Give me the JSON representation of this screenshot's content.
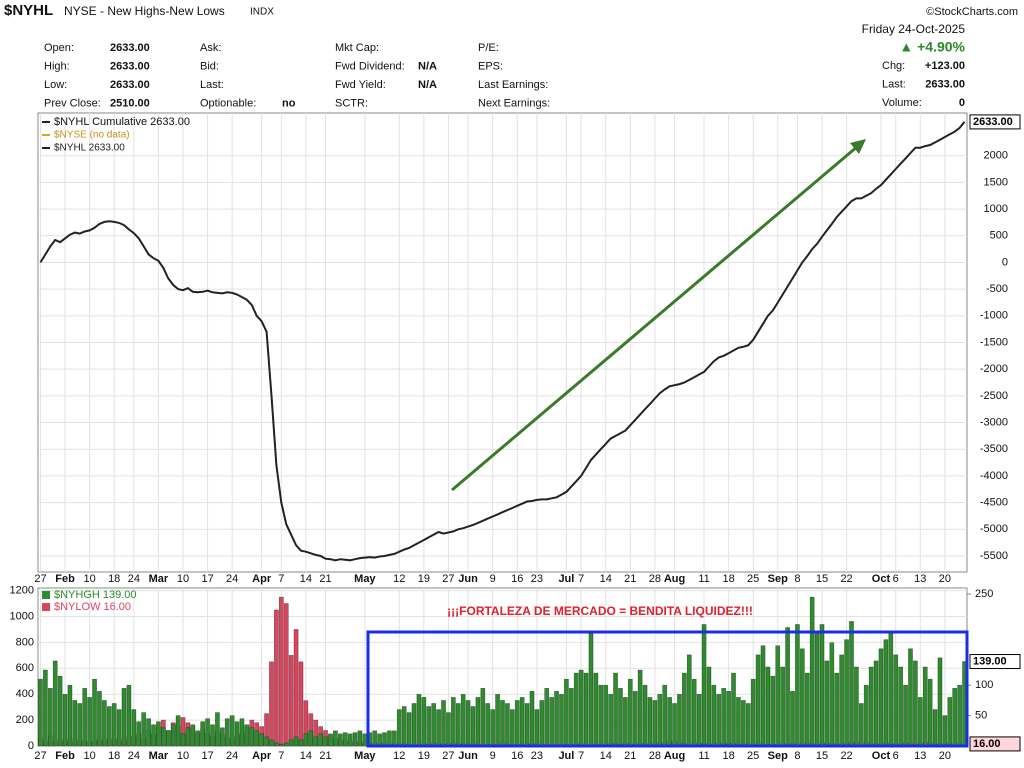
{
  "header": {
    "symbol": "$NYHL",
    "name": "NYSE - New Highs-New Lows",
    "kind": "INDX",
    "credit": "©StockCharts.com",
    "date": "Friday 24-Oct-2025",
    "change_pct": "▲ +4.90%"
  },
  "quote": {
    "columns": [
      [
        {
          "label": "Open:",
          "value": "2633.00"
        },
        {
          "label": "High:",
          "value": "2633.00"
        },
        {
          "label": "Low:",
          "value": "2633.00"
        },
        {
          "label": "Prev Close:",
          "value": "2510.00"
        }
      ],
      [
        {
          "label": "Ask:"
        },
        {
          "label": "Bid:"
        },
        {
          "label": "Last:"
        },
        {
          "label": "Optionable:",
          "value": "no"
        }
      ],
      [
        {
          "label": "Mkt Cap:"
        },
        {
          "label": "Fwd Dividend:",
          "value": "N/A"
        },
        {
          "label": "Fwd Yield:",
          "value": "N/A"
        },
        {
          "label": "SCTR:"
        }
      ],
      [
        {
          "label": "P/E:"
        },
        {
          "label": "EPS:"
        },
        {
          "label": "Last Earnings:"
        },
        {
          "label": "Next Earnings:"
        }
      ]
    ],
    "right": [
      {
        "label": "Chg:",
        "value": "+123.00"
      },
      {
        "label": "Last:",
        "value": "2633.00"
      },
      {
        "label": "Volume:",
        "value": "0"
      }
    ]
  },
  "annotations": {
    "text": "¡¡¡FORTALEZA DE MERCADO = BENDITA LIQUIDEZ!!!"
  },
  "chart_data": [
    {
      "type": "line",
      "legend_extra": [
        "$NYSE (no data)",
        "$NYHL 2633.00"
      ],
      "categories": [
        "27",
        null,
        null,
        null,
        null,
        "Feb",
        null,
        null,
        null,
        null,
        "10",
        null,
        null,
        null,
        null,
        "18",
        null,
        null,
        null,
        "24",
        null,
        null,
        null,
        null,
        "Mar",
        null,
        null,
        null,
        null,
        "10",
        null,
        null,
        null,
        null,
        "17",
        null,
        null,
        null,
        null,
        "24",
        null,
        null,
        null,
        null,
        null,
        "Apr",
        null,
        null,
        null,
        "7",
        null,
        null,
        null,
        null,
        "14",
        null,
        null,
        null,
        "21",
        null,
        null,
        null,
        null,
        null,
        null,
        null,
        "May",
        null,
        null,
        null,
        null,
        null,
        null,
        "12",
        null,
        null,
        null,
        null,
        "19",
        null,
        null,
        null,
        null,
        "27",
        null,
        null,
        null,
        "Jun",
        null,
        null,
        null,
        null,
        "9",
        null,
        null,
        null,
        null,
        "16",
        null,
        null,
        null,
        "23",
        null,
        null,
        null,
        null,
        null,
        "Jul",
        null,
        null,
        "7",
        null,
        null,
        null,
        null,
        "14",
        null,
        null,
        null,
        null,
        "21",
        null,
        null,
        null,
        null,
        "28",
        null,
        null,
        null,
        "Aug",
        null,
        null,
        null,
        null,
        null,
        "11",
        null,
        null,
        null,
        null,
        "18",
        null,
        null,
        null,
        null,
        "25",
        null,
        null,
        null,
        null,
        "Sep",
        null,
        null,
        null,
        "8",
        null,
        null,
        null,
        null,
        "15",
        null,
        null,
        null,
        null,
        "22",
        null,
        null,
        null,
        null,
        null,
        null,
        "Oct",
        null,
        null,
        "6",
        null,
        null,
        null,
        null,
        "13",
        null,
        null,
        null,
        null,
        "20",
        null,
        null,
        null,
        null
      ],
      "series": [
        {
          "name": "$NYHL Cumulative 2633.00",
          "color": "#222222",
          "value_tag": "2633.00",
          "values": [
            0,
            150,
            300,
            420,
            380,
            450,
            520,
            560,
            540,
            580,
            600,
            650,
            720,
            760,
            770,
            760,
            740,
            700,
            620,
            550,
            450,
            300,
            150,
            80,
            30,
            -100,
            -300,
            -420,
            -500,
            -520,
            -480,
            -550,
            -560,
            -550,
            -530,
            -560,
            -570,
            -580,
            -560,
            -570,
            -600,
            -650,
            -700,
            -800,
            -1000,
            -1100,
            -1300,
            -2500,
            -3800,
            -4500,
            -4900,
            -5100,
            -5300,
            -5400,
            -5420,
            -5450,
            -5480,
            -5500,
            -5550,
            -5560,
            -5580,
            -5560,
            -5570,
            -5580,
            -5560,
            -5540,
            -5530,
            -5520,
            -5530,
            -5510,
            -5500,
            -5480,
            -5460,
            -5420,
            -5380,
            -5350,
            -5300,
            -5250,
            -5200,
            -5150,
            -5100,
            -5050,
            -5080,
            -5060,
            -5040,
            -5000,
            -4980,
            -4950,
            -4920,
            -4880,
            -4840,
            -4800,
            -4760,
            -4720,
            -4680,
            -4640,
            -4600,
            -4560,
            -4520,
            -4480,
            -4470,
            -4450,
            -4440,
            -4440,
            -4420,
            -4400,
            -4350,
            -4300,
            -4200,
            -4100,
            -4000,
            -3850,
            -3700,
            -3600,
            -3500,
            -3400,
            -3300,
            -3250,
            -3200,
            -3150,
            -3050,
            -2950,
            -2850,
            -2750,
            -2650,
            -2550,
            -2450,
            -2380,
            -2320,
            -2300,
            -2280,
            -2250,
            -2200,
            -2150,
            -2100,
            -2050,
            -1950,
            -1850,
            -1780,
            -1750,
            -1700,
            -1650,
            -1600,
            -1580,
            -1550,
            -1450,
            -1300,
            -1150,
            -1000,
            -900,
            -750,
            -600,
            -450,
            -300,
            -150,
            0,
            120,
            250,
            350,
            480,
            600,
            720,
            850,
            950,
            1050,
            1150,
            1200,
            1200,
            1250,
            1300,
            1380,
            1450,
            1550,
            1650,
            1750,
            1850,
            1950,
            2050,
            2150,
            2150,
            2180,
            2200,
            2250,
            2300,
            2350,
            2400,
            2450,
            2520,
            2633
          ]
        }
      ],
      "ylim": [
        -5800,
        2800
      ],
      "yticks": [
        -5500,
        -5000,
        -4500,
        -4000,
        -3500,
        -3000,
        -2500,
        -2000,
        -1500,
        -1000,
        -500,
        0,
        500,
        1000,
        1500,
        2000
      ],
      "grid": true
    },
    {
      "type": "bar",
      "categories": [
        "27",
        null,
        null,
        null,
        null,
        "Feb",
        null,
        null,
        null,
        null,
        "10",
        null,
        null,
        null,
        null,
        "18",
        null,
        null,
        null,
        "24",
        null,
        null,
        null,
        null,
        "Mar",
        null,
        null,
        null,
        null,
        "10",
        null,
        null,
        null,
        null,
        "17",
        null,
        null,
        null,
        null,
        "24",
        null,
        null,
        null,
        null,
        null,
        "Apr",
        null,
        null,
        null,
        "7",
        null,
        null,
        null,
        null,
        "14",
        null,
        null,
        null,
        "21",
        null,
        null,
        null,
        null,
        null,
        null,
        null,
        "May",
        null,
        null,
        null,
        null,
        null,
        null,
        "12",
        null,
        null,
        null,
        null,
        "19",
        null,
        null,
        null,
        null,
        "27",
        null,
        null,
        null,
        "Jun",
        null,
        null,
        null,
        null,
        "9",
        null,
        null,
        null,
        null,
        "16",
        null,
        null,
        null,
        "23",
        null,
        null,
        null,
        null,
        null,
        "Jul",
        null,
        null,
        "7",
        null,
        null,
        null,
        null,
        "14",
        null,
        null,
        null,
        null,
        "21",
        null,
        null,
        null,
        null,
        "28",
        null,
        null,
        null,
        "Aug",
        null,
        null,
        null,
        null,
        null,
        "11",
        null,
        null,
        null,
        null,
        "18",
        null,
        null,
        null,
        null,
        "25",
        null,
        null,
        null,
        null,
        "Sep",
        null,
        null,
        null,
        "8",
        null,
        null,
        null,
        null,
        "15",
        null,
        null,
        null,
        null,
        "22",
        null,
        null,
        null,
        null,
        null,
        null,
        "Oct",
        null,
        null,
        "6",
        null,
        null,
        null,
        null,
        "13",
        null,
        null,
        null,
        null,
        "20",
        null,
        null,
        null,
        null
      ],
      "series": [
        {
          "name": "$NYLOW 16.00",
          "color": "#d9455f",
          "axis": "y",
          "value_tag": "16.00",
          "values": [
            60,
            40,
            80,
            30,
            50,
            40,
            60,
            30,
            50,
            40,
            30,
            40,
            50,
            40,
            60,
            50,
            60,
            40,
            70,
            80,
            100,
            60,
            120,
            90,
            150,
            200,
            120,
            180,
            160,
            220,
            180,
            150,
            100,
            130,
            100,
            80,
            120,
            90,
            70,
            60,
            80,
            100,
            150,
            200,
            180,
            150,
            250,
            650,
            1050,
            1150,
            1100,
            700,
            900,
            650,
            350,
            250,
            200,
            150,
            120,
            80,
            60,
            50,
            40,
            40,
            30,
            30,
            25,
            20,
            20,
            25,
            20,
            15,
            20,
            15,
            20,
            15,
            10,
            15,
            20,
            15,
            25,
            20,
            15,
            20,
            25,
            20,
            15,
            15,
            20,
            15,
            10,
            15,
            10,
            15,
            20,
            15,
            10,
            15,
            20,
            15,
            20,
            20,
            15,
            10,
            15,
            10,
            10,
            15,
            10,
            15,
            20,
            15,
            10,
            15,
            20,
            15,
            20,
            25,
            15,
            20,
            20,
            15,
            25,
            20,
            15,
            25,
            30,
            20,
            40,
            35,
            25,
            20,
            15,
            20,
            25,
            20,
            15,
            20,
            25,
            20,
            25,
            20,
            15,
            20,
            15,
            15,
            20,
            15,
            10,
            15,
            15,
            20,
            15,
            20,
            15,
            20,
            25,
            20,
            15,
            20,
            25,
            20,
            15,
            20,
            20,
            25,
            30,
            20,
            25,
            20,
            15,
            20,
            25,
            20,
            15,
            20,
            25,
            20,
            15,
            20,
            30,
            25,
            20,
            15,
            20,
            25,
            15,
            20,
            16
          ]
        },
        {
          "name": "$NYHGH 139.00",
          "color": "#2e8b2e",
          "axis": "y2",
          "value_tag": "139.00",
          "values": [
            110,
            125,
            95,
            140,
            115,
            85,
            100,
            75,
            70,
            95,
            80,
            110,
            90,
            75,
            65,
            70,
            60,
            95,
            100,
            60,
            40,
            55,
            45,
            35,
            40,
            30,
            25,
            35,
            50,
            20,
            30,
            35,
            25,
            40,
            45,
            35,
            55,
            30,
            45,
            50,
            40,
            45,
            35,
            30,
            25,
            20,
            15,
            10,
            5,
            3,
            5,
            10,
            15,
            10,
            20,
            25,
            15,
            20,
            15,
            20,
            25,
            20,
            22,
            20,
            22,
            25,
            20,
            22,
            25,
            20,
            22,
            25,
            25,
            60,
            65,
            55,
            70,
            85,
            80,
            65,
            70,
            60,
            75,
            55,
            80,
            70,
            85,
            75,
            65,
            80,
            95,
            70,
            60,
            85,
            75,
            70,
            60,
            75,
            80,
            70,
            90,
            60,
            75,
            95,
            80,
            90,
            85,
            110,
            95,
            120,
            125,
            120,
            185,
            120,
            100,
            100,
            85,
            120,
            95,
            80,
            110,
            90,
            125,
            100,
            80,
            75,
            85,
            100,
            80,
            70,
            85,
            120,
            150,
            110,
            85,
            200,
            130,
            100,
            85,
            95,
            90,
            120,
            80,
            75,
            70,
            110,
            150,
            165,
            130,
            115,
            165,
            130,
            195,
            90,
            200,
            160,
            120,
            245,
            185,
            200,
            140,
            170,
            120,
            150,
            175,
            205,
            130,
            70,
            100,
            130,
            140,
            160,
            175,
            185,
            150,
            130,
            100,
            160,
            140,
            80,
            130,
            110,
            60,
            145,
            50,
            80,
            95,
            100,
            139
          ]
        }
      ],
      "ylim": [
        0,
        1220
      ],
      "yticks": [
        0,
        200,
        400,
        600,
        800,
        1000,
        1200
      ],
      "y2lim": [
        0,
        260
      ],
      "y2ticks": [
        50,
        100,
        250
      ],
      "grid": true
    }
  ]
}
